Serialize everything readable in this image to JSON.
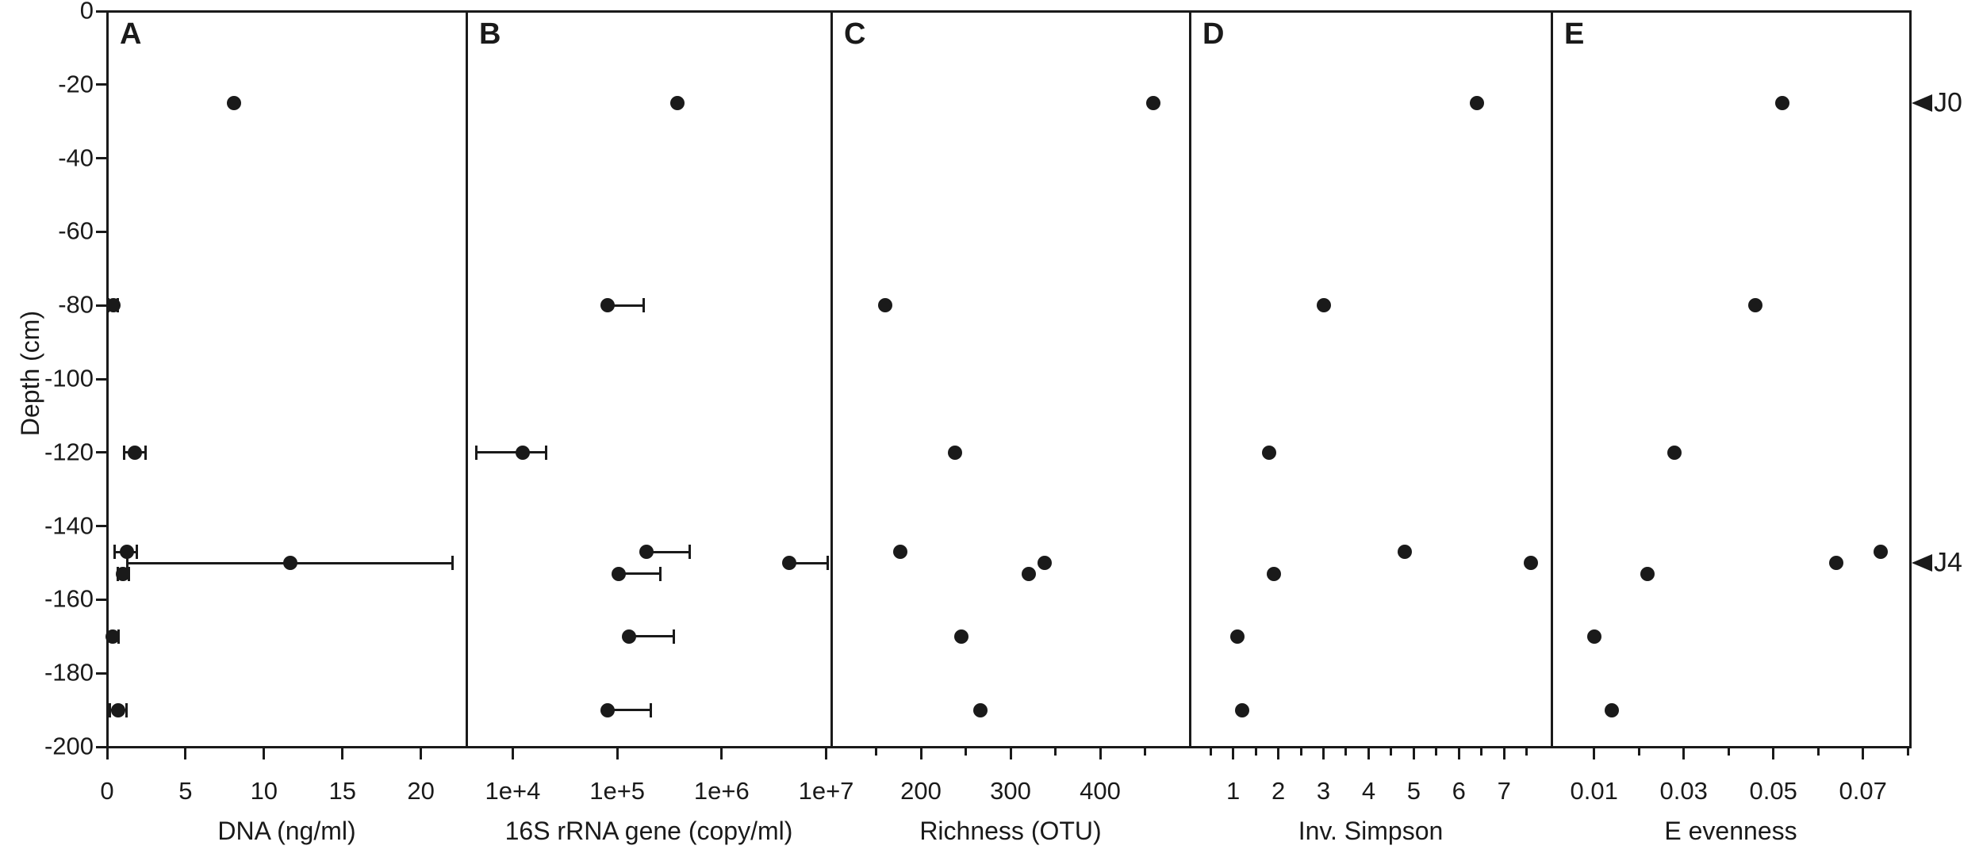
{
  "y_axis": {
    "label": "Depth (cm)",
    "range": [
      0,
      -200
    ],
    "ticks": [
      {
        "v": 0,
        "label": "0"
      },
      {
        "v": -20,
        "label": "-20"
      },
      {
        "v": -40,
        "label": "-40"
      },
      {
        "v": -60,
        "label": "-60"
      },
      {
        "v": -80,
        "label": "-80"
      },
      {
        "v": -100,
        "label": "-100"
      },
      {
        "v": -120,
        "label": "-120"
      },
      {
        "v": -140,
        "label": "-140"
      },
      {
        "v": -160,
        "label": "-160"
      },
      {
        "v": -180,
        "label": "-180"
      },
      {
        "v": -200,
        "label": "-200"
      }
    ]
  },
  "annotations": [
    {
      "text": "J0",
      "depth": -25
    },
    {
      "text": "J4",
      "depth": -150
    }
  ],
  "style": {
    "ink_color": "#1a1a1a",
    "background": "#ffffff"
  },
  "chart_data": [
    {
      "id": "A",
      "type": "scatter",
      "xlabel": "DNA (ng/ml)",
      "xscale": "linear",
      "xrange": [
        0,
        22.9
      ],
      "xticks": [
        {
          "v": 0,
          "label": "0"
        },
        {
          "v": 5,
          "label": "5"
        },
        {
          "v": 10,
          "label": "10"
        },
        {
          "v": 15,
          "label": "15"
        },
        {
          "v": 20,
          "label": "20"
        }
      ],
      "xminor": [],
      "points": [
        {
          "depth": -25,
          "value": 8.1,
          "err": null
        },
        {
          "depth": -80,
          "value": 0.38,
          "err": [
            0.07,
            0.69
          ]
        },
        {
          "depth": -120,
          "value": 1.79,
          "err": [
            1.09,
            2.46
          ]
        },
        {
          "depth": -147,
          "value": 1.26,
          "err": [
            0.5,
            1.9
          ]
        },
        {
          "depth": -150,
          "value": 11.7,
          "err": [
            1.3,
            22.0
          ]
        },
        {
          "depth": -153,
          "value": 1.0,
          "err": [
            0.7,
            1.4
          ]
        },
        {
          "depth": -170,
          "value": 0.35,
          "err": [
            0.02,
            0.72
          ]
        },
        {
          "depth": -190,
          "value": 0.69,
          "err": [
            0.18,
            1.23
          ]
        }
      ]
    },
    {
      "id": "B",
      "type": "scatter",
      "xlabel": "16S rRNA gene (copy/ml)",
      "xscale": "log",
      "xrange": [
        3600,
        11200000
      ],
      "xticks": [
        {
          "v": 10000,
          "label": "1e+4"
        },
        {
          "v": 100000,
          "label": "1e+5"
        },
        {
          "v": 1000000,
          "label": "1e+6"
        },
        {
          "v": 10000000,
          "label": "1e+7"
        }
      ],
      "xminor": [],
      "points": [
        {
          "depth": -25,
          "value": 380000,
          "err": null
        },
        {
          "depth": -80,
          "value": 81000,
          "err": [
            null,
            180000
          ]
        },
        {
          "depth": -120,
          "value": 12500,
          "err": [
            4500,
            21000
          ]
        },
        {
          "depth": -147,
          "value": 190000,
          "err": [
            null,
            490000
          ]
        },
        {
          "depth": -150,
          "value": 4400000,
          "err": [
            null,
            10400000
          ]
        },
        {
          "depth": -153,
          "value": 103000,
          "err": [
            null,
            260000
          ]
        },
        {
          "depth": -170,
          "value": 130000,
          "err": [
            null,
            350000
          ]
        },
        {
          "depth": -190,
          "value": 81000,
          "err": [
            null,
            210000
          ]
        }
      ]
    },
    {
      "id": "C",
      "type": "scatter",
      "xlabel": "Richness (OTU)",
      "xscale": "linear",
      "xrange": [
        100,
        500
      ],
      "xticks": [
        {
          "v": 200,
          "label": "200"
        },
        {
          "v": 300,
          "label": "300"
        },
        {
          "v": 400,
          "label": "400"
        }
      ],
      "xminor": [
        150,
        250,
        350,
        450
      ],
      "points": [
        {
          "depth": -25,
          "value": 459,
          "err": null
        },
        {
          "depth": -80,
          "value": 160,
          "err": null
        },
        {
          "depth": -120,
          "value": 238,
          "err": null
        },
        {
          "depth": -147,
          "value": 177,
          "err": null
        },
        {
          "depth": -150,
          "value": 338,
          "err": null
        },
        {
          "depth": -153,
          "value": 320,
          "err": null
        },
        {
          "depth": -170,
          "value": 245,
          "err": null
        },
        {
          "depth": -190,
          "value": 266,
          "err": null
        }
      ]
    },
    {
      "id": "D",
      "type": "scatter",
      "xlabel": "Inv. Simpson",
      "xscale": "linear",
      "xrange": [
        0.04,
        8.05
      ],
      "xticks": [
        {
          "v": 1,
          "label": "1"
        },
        {
          "v": 2,
          "label": "2"
        },
        {
          "v": 3,
          "label": "3"
        },
        {
          "v": 4,
          "label": "4"
        },
        {
          "v": 5,
          "label": "5"
        },
        {
          "v": 6,
          "label": "6"
        },
        {
          "v": 7,
          "label": "7"
        }
      ],
      "xminor": [
        0.5,
        1.5,
        2.5,
        3.5,
        4.5,
        5.5,
        6.5,
        7.5
      ],
      "points": [
        {
          "depth": -25,
          "value": 6.4,
          "err": null
        },
        {
          "depth": -80,
          "value": 3.0,
          "err": null
        },
        {
          "depth": -120,
          "value": 1.8,
          "err": null
        },
        {
          "depth": -147,
          "value": 4.8,
          "err": null
        },
        {
          "depth": -150,
          "value": 7.6,
          "err": null
        },
        {
          "depth": -153,
          "value": 1.9,
          "err": null
        },
        {
          "depth": -170,
          "value": 1.1,
          "err": null
        },
        {
          "depth": -190,
          "value": 1.2,
          "err": null
        }
      ]
    },
    {
      "id": "E",
      "type": "scatter",
      "xlabel": "E evenness",
      "xscale": "linear",
      "xrange": [
        0.0005,
        0.0805
      ],
      "xticks": [
        {
          "v": 0.01,
          "label": "0.01"
        },
        {
          "v": 0.03,
          "label": "0.03"
        },
        {
          "v": 0.05,
          "label": "0.05"
        },
        {
          "v": 0.07,
          "label": "0.07"
        }
      ],
      "xminor": [
        0.02,
        0.04,
        0.06,
        0.08
      ],
      "points": [
        {
          "depth": -25,
          "value": 0.052,
          "err": null
        },
        {
          "depth": -80,
          "value": 0.046,
          "err": null
        },
        {
          "depth": -120,
          "value": 0.028,
          "err": null
        },
        {
          "depth": -147,
          "value": 0.074,
          "err": null
        },
        {
          "depth": -150,
          "value": 0.064,
          "err": null
        },
        {
          "depth": -153,
          "value": 0.022,
          "err": null
        },
        {
          "depth": -170,
          "value": 0.01,
          "err": null
        },
        {
          "depth": -190,
          "value": 0.014,
          "err": null
        }
      ]
    }
  ]
}
